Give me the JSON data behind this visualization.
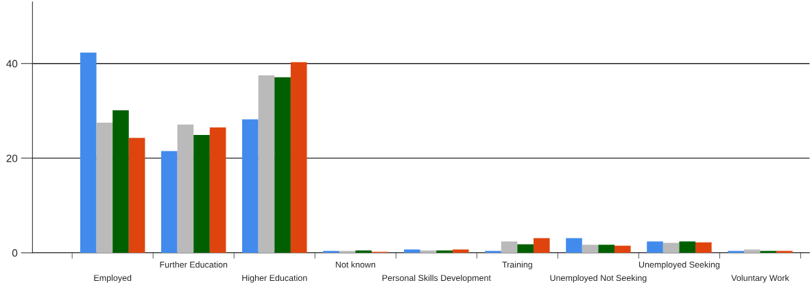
{
  "chart_data": {
    "type": "bar",
    "categories": [
      "Employed",
      "Further Education",
      "Higher Education",
      "Not known",
      "Personal Skills Development",
      "Training",
      "Unemployed Not Seeking",
      "Unemployed Seeking",
      "Voluntary Work"
    ],
    "series": [
      {
        "color": "#428bed",
        "values": [
          42.3,
          21.5,
          28.2,
          0.4,
          0.7,
          0.4,
          3.1,
          2.4,
          0.4
        ]
      },
      {
        "color": "#bababa",
        "values": [
          27.5,
          27.1,
          37.5,
          0.4,
          0.5,
          2.4,
          1.7,
          2.1,
          0.7
        ]
      },
      {
        "color": "#006000",
        "values": [
          30.1,
          24.9,
          37.1,
          0.5,
          0.5,
          1.8,
          1.7,
          2.4,
          0.4
        ]
      },
      {
        "color": "#e0440e",
        "values": [
          24.3,
          26.5,
          40.3,
          0.2,
          0.7,
          3.1,
          1.5,
          2.2,
          0.4
        ]
      }
    ],
    "ylim": [
      0,
      53
    ],
    "yticks": [
      0,
      20,
      40
    ],
    "grid": "y"
  }
}
